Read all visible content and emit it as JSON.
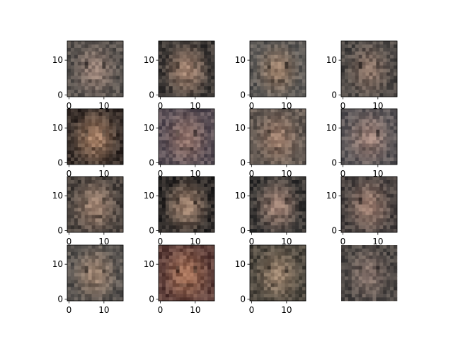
{
  "chart_data": {
    "type": "heatmap",
    "layout": {
      "rows": 4,
      "cols": 4
    },
    "image_size": {
      "width": 16,
      "height": 16
    },
    "x_ticks": [
      "0",
      "10"
    ],
    "y_ticks": [
      "0",
      "10"
    ],
    "xlim": [
      0,
      16
    ],
    "ylim": [
      16,
      0
    ],
    "panels": [
      {
        "row": 0,
        "col": 0,
        "tint": "#8f7a70",
        "hair": "#5a5450",
        "x_axis_visible": true
      },
      {
        "row": 0,
        "col": 1,
        "tint": "#9c7e6c",
        "hair": "#3f3a37",
        "x_axis_visible": true
      },
      {
        "row": 0,
        "col": 2,
        "tint": "#957b67",
        "hair": "#5d5a57",
        "x_axis_visible": true
      },
      {
        "row": 0,
        "col": 3,
        "tint": "#856f63",
        "hair": "#4f4a47",
        "x_axis_visible": true
      },
      {
        "row": 1,
        "col": 0,
        "tint": "#a07b62",
        "hair": "#3a302b",
        "x_axis_visible": true
      },
      {
        "row": 1,
        "col": 1,
        "tint": "#8d6f68",
        "hair": "#5a4f56",
        "x_axis_visible": true
      },
      {
        "row": 1,
        "col": 2,
        "tint": "#987a69",
        "hair": "#645a53",
        "x_axis_visible": true
      },
      {
        "row": 1,
        "col": 3,
        "tint": "#9d8279",
        "hair": "#5b5658",
        "x_axis_visible": true
      },
      {
        "row": 2,
        "col": 0,
        "tint": "#9a7f6e",
        "hair": "#4d4540",
        "x_axis_visible": true
      },
      {
        "row": 2,
        "col": 1,
        "tint": "#9a7e6b",
        "hair": "#2f2b29",
        "x_axis_visible": true
      },
      {
        "row": 2,
        "col": 2,
        "tint": "#9b7f72",
        "hair": "#3b3836",
        "x_axis_visible": true
      },
      {
        "row": 2,
        "col": 3,
        "tint": "#9a7c6f",
        "hair": "#4a4341",
        "x_axis_visible": true
      },
      {
        "row": 3,
        "col": 0,
        "tint": "#98806e",
        "hair": "#5b5652",
        "x_axis_visible": true
      },
      {
        "row": 3,
        "col": 1,
        "tint": "#a06d55",
        "hair": "#5e3f3a",
        "x_axis_visible": true
      },
      {
        "row": 3,
        "col": 2,
        "tint": "#97806b",
        "hair": "#4f4940",
        "x_axis_visible": true
      },
      {
        "row": 3,
        "col": 3,
        "tint": "#7f6d66",
        "hair": "#4d4845",
        "x_axis_visible": false
      }
    ]
  }
}
